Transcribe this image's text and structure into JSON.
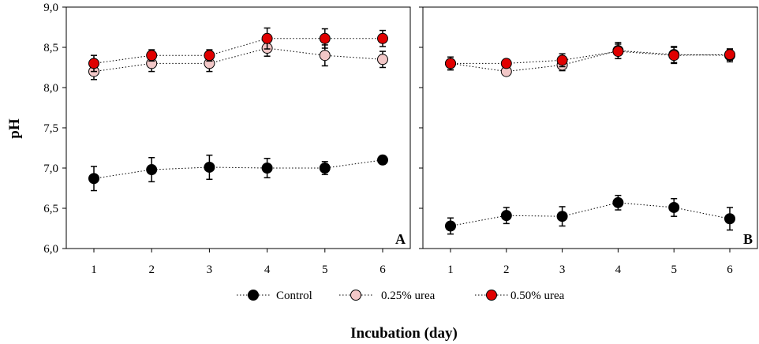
{
  "chart_data": {
    "type": "line",
    "ylabel": "pH",
    "xlabel": "Incubation (day)",
    "x": [
      1,
      2,
      3,
      4,
      5,
      6
    ],
    "x_tick_labels": [
      "1",
      "2",
      "3",
      "4",
      "5",
      "6"
    ],
    "ylim": [
      6.0,
      9.0
    ],
    "y_ticks": [
      6.0,
      6.5,
      7.0,
      7.5,
      8.0,
      8.5,
      9.0
    ],
    "y_tick_labels": [
      "6,0",
      "6,5",
      "7,0",
      "7,5",
      "8,0",
      "8,5",
      "9,0"
    ],
    "grid": false,
    "legend_position": "bottom-center",
    "legend": [
      {
        "name": "Control",
        "color": "#000000"
      },
      {
        "name": "0.25% urea",
        "color": "#f2c7c7"
      },
      {
        "name": "0.50% urea",
        "color": "#e00000"
      }
    ],
    "panels": [
      {
        "label": "A",
        "series": [
          {
            "name": "Control",
            "color": "#000000",
            "edge": "#000000",
            "values": [
              6.87,
              6.98,
              7.01,
              7.0,
              7.0,
              7.1
            ],
            "errors": [
              0.15,
              0.15,
              0.15,
              0.12,
              0.08,
              0.05
            ]
          },
          {
            "name": "0.25% urea",
            "color": "#f2c7c7",
            "edge": "#000000",
            "values": [
              8.2,
              8.3,
              8.3,
              8.49,
              8.4,
              8.35
            ],
            "errors": [
              0.1,
              0.1,
              0.1,
              0.1,
              0.13,
              0.1
            ]
          },
          {
            "name": "0.50% urea",
            "color": "#e00000",
            "edge": "#000000",
            "values": [
              8.3,
              8.4,
              8.4,
              8.61,
              8.61,
              8.61
            ],
            "errors": [
              0.1,
              0.07,
              0.07,
              0.13,
              0.12,
              0.1
            ]
          }
        ]
      },
      {
        "label": "B",
        "series": [
          {
            "name": "Control",
            "color": "#000000",
            "edge": "#000000",
            "values": [
              6.28,
              6.41,
              6.4,
              6.57,
              6.51,
              6.37
            ],
            "errors": [
              0.1,
              0.1,
              0.12,
              0.09,
              0.11,
              0.14
            ]
          },
          {
            "name": "0.25% urea",
            "color": "#f2c7c7",
            "edge": "#000000",
            "values": [
              8.3,
              8.2,
              8.28,
              8.46,
              8.41,
              8.4
            ],
            "errors": [
              0.08,
              0.05,
              0.07,
              0.1,
              0.1,
              0.08
            ]
          },
          {
            "name": "0.50% urea",
            "color": "#e00000",
            "edge": "#000000",
            "values": [
              8.3,
              8.3,
              8.34,
              8.45,
              8.4,
              8.41
            ],
            "errors": [
              0.08,
              0.05,
              0.08,
              0.09,
              0.1,
              0.07
            ]
          }
        ]
      }
    ]
  }
}
